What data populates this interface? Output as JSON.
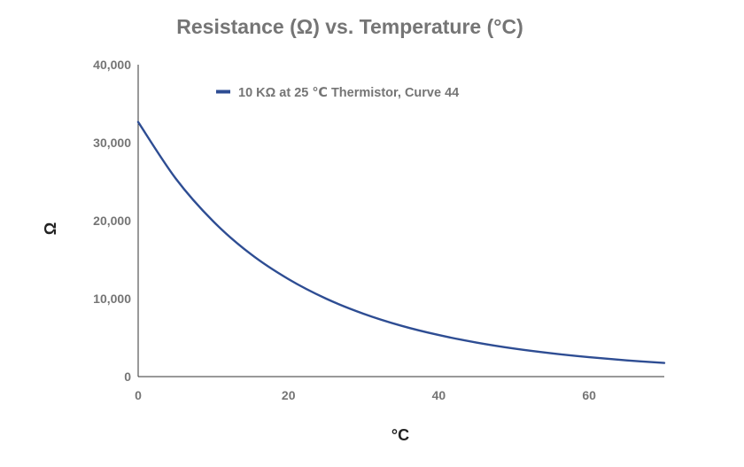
{
  "chart_data": {
    "type": "line",
    "title": "Resistance (Ω) vs. Temperature (°C)",
    "xlabel": "°C",
    "ylabel": "Ω",
    "xlim": [
      0,
      70
    ],
    "ylim": [
      0,
      40000
    ],
    "x_ticks": [
      0,
      20,
      40,
      60
    ],
    "x_tick_labels": [
      "0",
      "20",
      "40",
      "60"
    ],
    "y_ticks": [
      0,
      10000,
      20000,
      30000,
      40000
    ],
    "y_tick_labels": [
      "0",
      "10,000",
      "20,000",
      "30,000",
      "40,000"
    ],
    "grid": false,
    "legend_position": "top-left",
    "series": [
      {
        "name": "10 KΩ at 25 ℃ Thermistor, Curve 44",
        "color": "#2e4d93",
        "x": [
          0,
          5,
          10,
          15,
          20,
          25,
          30,
          35,
          40,
          45,
          50,
          55,
          60,
          65,
          70
        ],
        "y": [
          32650,
          25400,
          19900,
          15700,
          12500,
          10000,
          8060,
          6530,
          5330,
          4370,
          3600,
          2990,
          2490,
          2080,
          1750
        ]
      }
    ]
  }
}
